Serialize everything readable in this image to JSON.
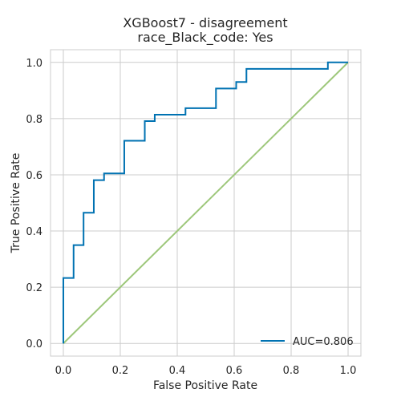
{
  "chart_data": {
    "type": "line",
    "title_lines": [
      "XGBoost7 - disagreement",
      "race_Black_code: Yes"
    ],
    "xlabel": "False Positive Rate",
    "ylabel": "True Positive Rate",
    "xlim": [
      -0.045,
      1.045
    ],
    "ylim": [
      -0.045,
      1.045
    ],
    "x_ticks": [
      0.0,
      0.2,
      0.4,
      0.6,
      0.8,
      1.0
    ],
    "y_ticks": [
      0.0,
      0.2,
      0.4,
      0.6,
      0.8,
      1.0
    ],
    "x_tick_labels": [
      "0.0",
      "0.2",
      "0.4",
      "0.6",
      "0.8",
      "1.0"
    ],
    "y_tick_labels": [
      "0.0",
      "0.2",
      "0.4",
      "0.6",
      "0.8",
      "1.0"
    ],
    "grid": true,
    "legend_position": "lower-right",
    "series": [
      {
        "name": "AUC=0.806",
        "color": "#0072b2",
        "x": [
          0.0,
          0.0,
          0.036,
          0.036,
          0.071,
          0.071,
          0.107,
          0.107,
          0.143,
          0.143,
          0.214,
          0.214,
          0.286,
          0.286,
          0.321,
          0.321,
          0.429,
          0.429,
          0.536,
          0.536,
          0.607,
          0.607,
          0.643,
          0.643,
          0.929,
          0.929,
          1.0
        ],
        "y": [
          0.0,
          0.233,
          0.233,
          0.35,
          0.35,
          0.465,
          0.465,
          0.581,
          0.581,
          0.605,
          0.605,
          0.721,
          0.721,
          0.791,
          0.791,
          0.814,
          0.814,
          0.837,
          0.837,
          0.907,
          0.907,
          0.93,
          0.93,
          0.977,
          0.977,
          1.0,
          1.0
        ]
      }
    ],
    "reference_line": {
      "color": "#9dc77a",
      "x": [
        0.0,
        1.0
      ],
      "y": [
        0.0,
        1.0
      ]
    }
  }
}
